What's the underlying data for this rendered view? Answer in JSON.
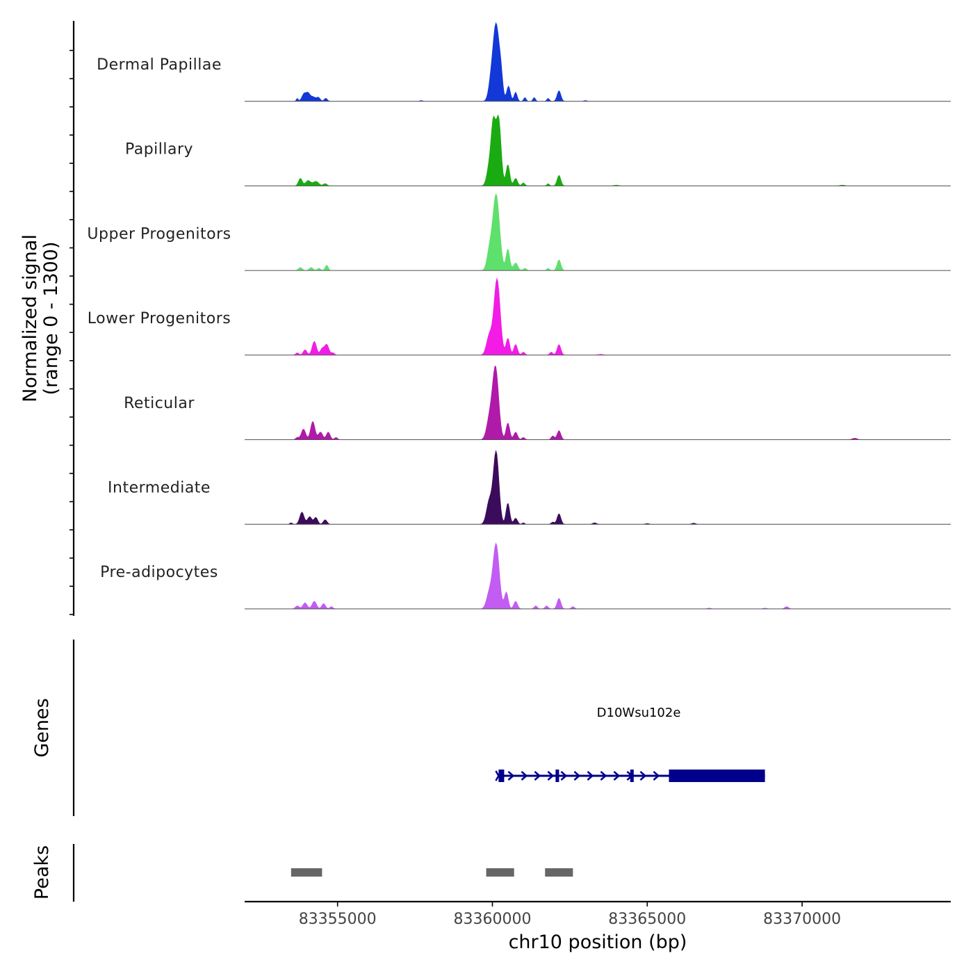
{
  "chart_data": {
    "type": "area",
    "title": "",
    "signal_panel": {
      "ylabel_line1": "Normalized signal",
      "ylabel_line2": "(range 0 - 1300)",
      "ylim": [
        0,
        1300
      ],
      "tracks": [
        {
          "name": "Dermal Papillae",
          "color": "#1338d8",
          "scale": 1.0,
          "peaks": [
            [
              83353700,
              0.04,
              30
            ],
            [
              83353920,
              0.1,
              70
            ],
            [
              83354050,
              0.09,
              60
            ],
            [
              83354200,
              0.06,
              80
            ],
            [
              83354380,
              0.05,
              60
            ],
            [
              83354620,
              0.04,
              50
            ],
            [
              83359950,
              0.2,
              80
            ],
            [
              83360120,
              1.0,
              100
            ],
            [
              83360280,
              0.25,
              60
            ],
            [
              83360520,
              0.2,
              60
            ],
            [
              83360750,
              0.12,
              50
            ],
            [
              83361050,
              0.05,
              40
            ],
            [
              83361350,
              0.05,
              40
            ],
            [
              83361800,
              0.04,
              40
            ],
            [
              83362150,
              0.14,
              60
            ],
            [
              83357700,
              0.01,
              50
            ],
            [
              83363000,
              0.01,
              50
            ]
          ]
        },
        {
          "name": "Papillary",
          "color": "#1aab12",
          "scale": 1.0,
          "peaks": [
            [
              83353800,
              0.1,
              60
            ],
            [
              83354050,
              0.07,
              80
            ],
            [
              83354300,
              0.06,
              90
            ],
            [
              83354600,
              0.03,
              60
            ],
            [
              83359900,
              0.25,
              80
            ],
            [
              83360030,
              0.75,
              70
            ],
            [
              83360200,
              0.88,
              80
            ],
            [
              83360500,
              0.28,
              60
            ],
            [
              83360750,
              0.1,
              60
            ],
            [
              83361000,
              0.04,
              50
            ],
            [
              83361800,
              0.03,
              40
            ],
            [
              83362150,
              0.14,
              60
            ],
            [
              83371300,
              0.01,
              80
            ],
            [
              83364000,
              0.01,
              80
            ]
          ]
        },
        {
          "name": "Upper Progenitors",
          "color": "#5ee06c",
          "scale": 1.0,
          "peaks": [
            [
              83353800,
              0.04,
              60
            ],
            [
              83354150,
              0.04,
              60
            ],
            [
              83354400,
              0.03,
              50
            ],
            [
              83354650,
              0.07,
              50
            ],
            [
              83359900,
              0.22,
              80
            ],
            [
              83360120,
              1.0,
              110
            ],
            [
              83360500,
              0.28,
              60
            ],
            [
              83360750,
              0.1,
              70
            ],
            [
              83361050,
              0.03,
              50
            ],
            [
              83361800,
              0.03,
              40
            ],
            [
              83362150,
              0.14,
              60
            ]
          ]
        },
        {
          "name": "Lower Progenitors",
          "color": "#f21ce6",
          "scale": 1.0,
          "peaks": [
            [
              83353700,
              0.03,
              50
            ],
            [
              83353950,
              0.07,
              60
            ],
            [
              83354250,
              0.18,
              70
            ],
            [
              83354650,
              0.14,
              70
            ],
            [
              83354500,
              0.08,
              60
            ],
            [
              83354850,
              0.03,
              50
            ],
            [
              83359900,
              0.25,
              90
            ],
            [
              83360150,
              1.0,
              100
            ],
            [
              83360500,
              0.22,
              60
            ],
            [
              83360750,
              0.14,
              60
            ],
            [
              83361000,
              0.04,
              50
            ],
            [
              83361900,
              0.04,
              50
            ],
            [
              83362150,
              0.14,
              60
            ],
            [
              83363500,
              0.01,
              80
            ]
          ]
        },
        {
          "name": "Reticular",
          "color": "#b01aa8",
          "scale": 1.0,
          "peaks": [
            [
              83353700,
              0.03,
              50
            ],
            [
              83353900,
              0.14,
              70
            ],
            [
              83354200,
              0.24,
              70
            ],
            [
              83354450,
              0.1,
              70
            ],
            [
              83354700,
              0.1,
              60
            ],
            [
              83354950,
              0.03,
              50
            ],
            [
              83359900,
              0.25,
              90
            ],
            [
              83360100,
              0.95,
              100
            ],
            [
              83360500,
              0.22,
              60
            ],
            [
              83360750,
              0.1,
              60
            ],
            [
              83361000,
              0.03,
              50
            ],
            [
              83361950,
              0.05,
              50
            ],
            [
              83362150,
              0.12,
              60
            ],
            [
              83371700,
              0.02,
              80
            ]
          ]
        },
        {
          "name": "Intermediate",
          "color": "#3b0b5c",
          "scale": 1.0,
          "peaks": [
            [
              83353500,
              0.02,
              40
            ],
            [
              83353850,
              0.16,
              70
            ],
            [
              83354100,
              0.1,
              70
            ],
            [
              83354300,
              0.09,
              60
            ],
            [
              83354600,
              0.06,
              60
            ],
            [
              83359900,
              0.3,
              90
            ],
            [
              83360120,
              0.95,
              90
            ],
            [
              83360500,
              0.28,
              60
            ],
            [
              83360750,
              0.08,
              60
            ],
            [
              83361000,
              0.02,
              40
            ],
            [
              83361950,
              0.03,
              50
            ],
            [
              83362150,
              0.14,
              60
            ],
            [
              83363300,
              0.02,
              60
            ],
            [
              83365000,
              0.01,
              60
            ],
            [
              83366500,
              0.015,
              60
            ]
          ]
        },
        {
          "name": "Pre-adipocytes",
          "color": "#c25cf2",
          "scale": 1.0,
          "peaks": [
            [
              83353700,
              0.04,
              60
            ],
            [
              83353950,
              0.08,
              70
            ],
            [
              83354250,
              0.1,
              70
            ],
            [
              83354550,
              0.07,
              60
            ],
            [
              83354800,
              0.03,
              50
            ],
            [
              83359900,
              0.2,
              90
            ],
            [
              83360120,
              0.85,
              100
            ],
            [
              83360450,
              0.22,
              60
            ],
            [
              83360750,
              0.1,
              60
            ],
            [
              83361400,
              0.04,
              50
            ],
            [
              83361750,
              0.04,
              50
            ],
            [
              83362150,
              0.14,
              60
            ],
            [
              83362600,
              0.03,
              50
            ],
            [
              83369500,
              0.03,
              60
            ],
            [
              83368800,
              0.01,
              60
            ],
            [
              83367000,
              0.01,
              60
            ]
          ]
        }
      ]
    },
    "genes_panel": {
      "ylabel": "Genes",
      "genes": [
        {
          "name": "D10Wsu102e",
          "start": 83360200,
          "end": 83368800,
          "strand": "+",
          "color": "#00008b",
          "exons": [
            [
              83360200,
              83360380
            ],
            [
              83362040,
              83362100
            ],
            [
              83364450,
              83364560
            ]
          ],
          "utr_end": [
            83365700,
            83368800
          ]
        }
      ]
    },
    "peaks_panel": {
      "ylabel": "Peaks",
      "color": "#666666",
      "regions": [
        [
          83353500,
          83354500
        ],
        [
          83359800,
          83360700
        ],
        [
          83361700,
          83362600
        ]
      ]
    },
    "xaxis": {
      "xlabel": "chr10 position (bp)",
      "xlim": [
        83352000,
        83374800
      ],
      "ticks": [
        83355000,
        83360000,
        83365000,
        83370000
      ],
      "tick_labels": [
        "83355000",
        "83360000",
        "83365000",
        "83370000"
      ]
    }
  }
}
